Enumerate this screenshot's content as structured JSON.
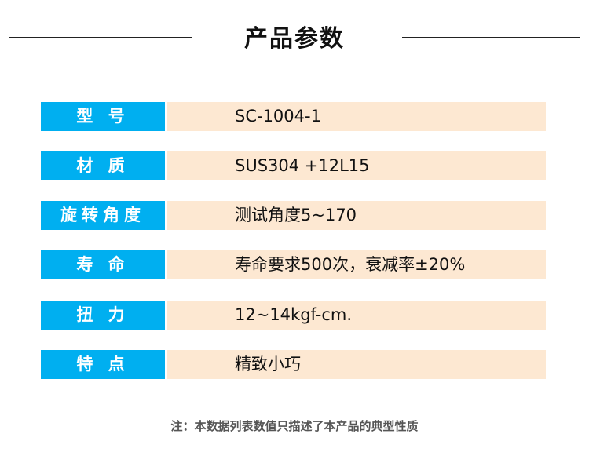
{
  "title": "产品参数",
  "colors": {
    "label_bg": "#00aff0",
    "value_bg": "#fde8d2"
  },
  "rows": [
    {
      "label": "型 号",
      "value": "SC-1004-1"
    },
    {
      "label": "材 质",
      "value": "SUS304 +12L15"
    },
    {
      "label": "旋转角度",
      "value": "测试角度5~170"
    },
    {
      "label": "寿 命",
      "value": "寿命要求500次，衰减率±20%"
    },
    {
      "label": "扭 力",
      "value": "12~14kgf-cm."
    },
    {
      "label": "特 点",
      "value": "精致小巧"
    }
  ],
  "note": "注：本数据列表数值只描述了本产品的典型性质"
}
